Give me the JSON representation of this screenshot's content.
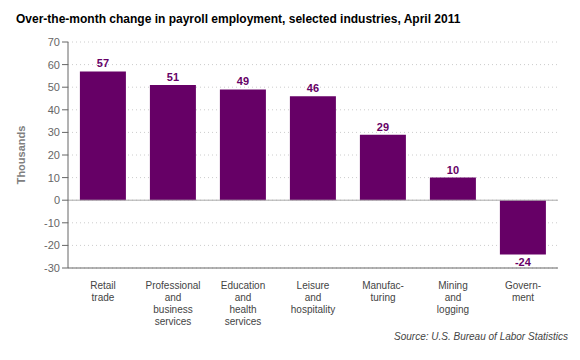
{
  "chart_data": {
    "type": "bar",
    "title": "Over-the-month change in payroll employment, selected industries, April 2011",
    "ylabel": "Thousands",
    "categories": [
      "Retail\ntrade",
      "Professional\nand\nbusiness\nservices",
      "Education\nand\nhealth\nservices",
      "Leisure\nand\nhospitality",
      "Manufac-\nturing",
      "Mining\nand\nlogging",
      "Govern-\nment"
    ],
    "values": [
      57,
      51,
      49,
      46,
      29,
      10,
      -24
    ],
    "color": "#660066",
    "ylim": [
      -30,
      70
    ],
    "yticks": [
      -30,
      -20,
      -10,
      0,
      10,
      20,
      30,
      40,
      50,
      60,
      70
    ],
    "grid": true,
    "data_labels": true,
    "annotations": [
      "Source: U.S. Bureau of Labor Statistics"
    ]
  }
}
